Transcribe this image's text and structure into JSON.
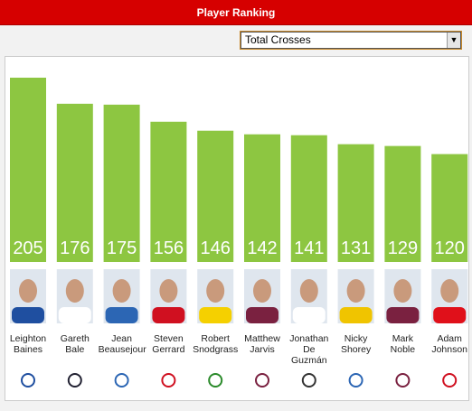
{
  "header": {
    "title": "Player Ranking"
  },
  "dropdown": {
    "selected": "Total Crosses"
  },
  "chart_data": {
    "type": "bar",
    "categories": [
      "Leighton Baines",
      "Gareth Bale",
      "Jean Beausejour",
      "Steven Gerrard",
      "Robert Snodgrass",
      "Matthew Jarvis",
      "Jonathan De Guzmán",
      "Nicky Shorey",
      "Mark Noble",
      "Adam Johnson"
    ],
    "values": [
      205,
      176,
      175,
      156,
      146,
      142,
      141,
      131,
      129,
      120
    ],
    "color": "#8dc641"
  }
}
